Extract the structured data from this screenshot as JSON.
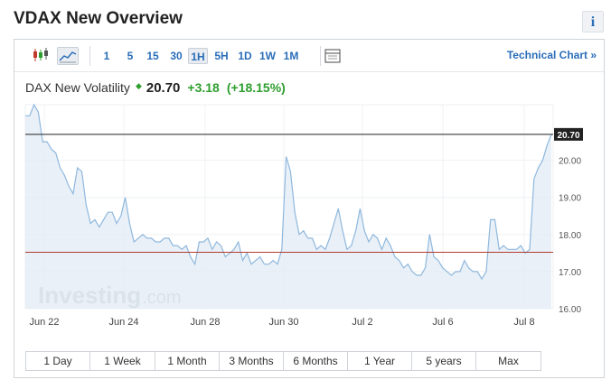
{
  "header": {
    "title": "VDAX New Overview",
    "info_label": "i"
  },
  "toolbar": {
    "icons": [
      "candlestick-icon",
      "area-chart-icon"
    ],
    "intervals": [
      "1",
      "5",
      "15",
      "30",
      "1H",
      "5H",
      "1D",
      "1W",
      "1M"
    ],
    "active_interval": "1H",
    "settings_icon": "chart-settings-icon",
    "technical_chart_label": "Technical Chart »"
  },
  "quote": {
    "name": "DAX New Volatility",
    "last": "20.70",
    "change": "+3.18",
    "change_pct": "(+18.15%)"
  },
  "colors": {
    "accent": "#2a6db8",
    "positive": "#2e9e2e",
    "area_fill": "#e3ecf5",
    "area_line": "#8fb8de",
    "reference_line": "#b03a2e"
  },
  "watermark": {
    "brand": "Investing",
    "suffix": ".com"
  },
  "chart_data": {
    "type": "area",
    "x_labels": [
      "Jun 22",
      "Jun 24",
      "Jun 28",
      "Jun 30",
      "Jul 2",
      "Jul 6",
      "Jul 8"
    ],
    "y_ticks": [
      "16.00",
      "17.00",
      "18.00",
      "19.00",
      "20.00"
    ],
    "ylim": [
      16.0,
      21.5
    ],
    "current_value": 20.7,
    "current_label": "20.70",
    "previous_close": 17.52,
    "series": [
      {
        "values": [
          21.2,
          21.2,
          21.5,
          21.3,
          20.5,
          20.5,
          20.3,
          20.2,
          19.8,
          19.6,
          19.3,
          19.1,
          19.8,
          19.7,
          18.8,
          18.3,
          18.4,
          18.2,
          18.4,
          18.6,
          18.6,
          18.3,
          18.5,
          19.0,
          18.3,
          17.8,
          17.9,
          18.0,
          17.9,
          17.9,
          17.8,
          17.8,
          17.9,
          17.9,
          17.7,
          17.7,
          17.6,
          17.7,
          17.4,
          17.2,
          17.8,
          17.8,
          17.9,
          17.6,
          17.8,
          17.7,
          17.4,
          17.5,
          17.6,
          17.8,
          17.3,
          17.5,
          17.2,
          17.3,
          17.4,
          17.2,
          17.2,
          17.3,
          17.2,
          17.6,
          20.1,
          19.7,
          18.6,
          18.0,
          18.1,
          17.9,
          17.9,
          17.6,
          17.7,
          17.6,
          17.9,
          18.3,
          18.7,
          18.1,
          17.6,
          17.7,
          18.1,
          18.7,
          18.1,
          17.8,
          18.0,
          17.9,
          17.6,
          17.9,
          17.7,
          17.4,
          17.3,
          17.1,
          17.2,
          17.0,
          16.9,
          16.9,
          17.1,
          18.0,
          17.4,
          17.3,
          17.1,
          17.0,
          16.9,
          17.0,
          17.0,
          17.3,
          17.1,
          17.0,
          17.0,
          16.8,
          17.0,
          18.4,
          18.4,
          17.6,
          17.7,
          17.6,
          17.6,
          17.6,
          17.7,
          17.5,
          17.6,
          19.5,
          19.8,
          20.0,
          20.4,
          20.7
        ]
      }
    ],
    "grid": true,
    "type_note": "area with price line"
  },
  "ranges": [
    "1 Day",
    "1 Week",
    "1 Month",
    "3 Months",
    "6 Months",
    "1 Year",
    "5 years",
    "Max"
  ]
}
